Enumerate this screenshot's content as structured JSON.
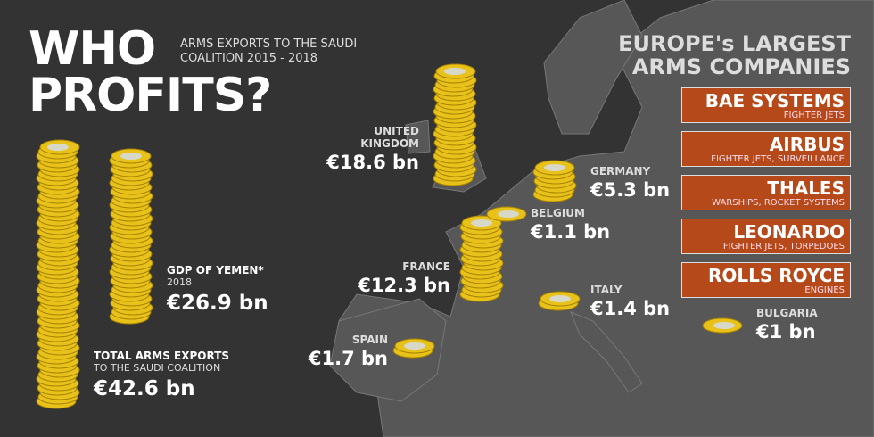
{
  "title": {
    "line1": "WHO",
    "line2": "PROFITS?"
  },
  "subtitle": "ARMS EXPORTS TO THE SAUDI COALITION 2015 - 2018",
  "totals": [
    {
      "label": "TOTAL ARMS EXPORTS",
      "sublabel": "TO THE SAUDI COALITION",
      "amount": "€42.6 bn",
      "value": 42.6
    },
    {
      "label": "GDP OF YEMEN*",
      "sublabel": "2018",
      "amount": "€26.9 bn",
      "value": 26.9
    }
  ],
  "countries": [
    {
      "name": "UNITED KINGDOM",
      "amount": "€18.6 bn",
      "value": 18.6
    },
    {
      "name": "FRANCE",
      "amount": "€12.3 bn",
      "value": 12.3
    },
    {
      "name": "GERMANY",
      "amount": "€5.3 bn",
      "value": 5.3
    },
    {
      "name": "BELGIUM",
      "amount": "€1.1 bn",
      "value": 1.1
    },
    {
      "name": "ITALY",
      "amount": "€1.4 bn",
      "value": 1.4
    },
    {
      "name": "SPAIN",
      "amount": "€1.7 bn",
      "value": 1.7
    },
    {
      "name": "BULGARIA",
      "amount": "€1 bn",
      "value": 1
    }
  ],
  "companies": {
    "heading": "EUROPE's LARGEST ARMS COMPANIES",
    "items": [
      {
        "name": "BAE SYSTEMS",
        "products": "FIGHTER JETS"
      },
      {
        "name": "AIRBUS",
        "products": "FIGHTER JETS, SURVEILLANCE"
      },
      {
        "name": "THALES",
        "products": "WARSHIPS, ROCKET SYSTEMS"
      },
      {
        "name": "LEONARDO",
        "products": "FIGHTER JETS, TORPEDOES"
      },
      {
        "name": "ROLLS ROYCE",
        "products": "ENGINES"
      }
    ]
  }
}
